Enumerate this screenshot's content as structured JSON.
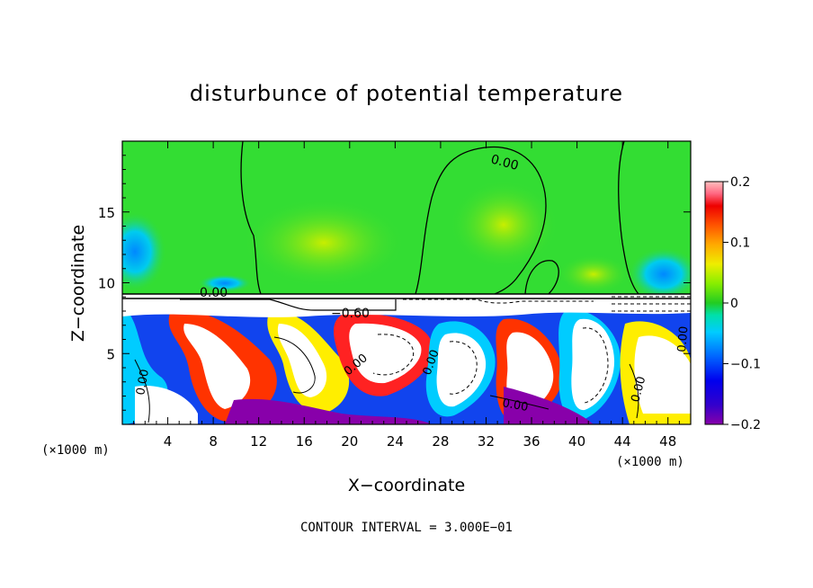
{
  "chart_data": {
    "type": "heatmap",
    "title": "disturbunce of potential temperature",
    "xlabel": "X−coordinate",
    "ylabel": "Z−coordinate",
    "x_unit": "(×1000 m)",
    "z_unit": "(×1000 m)",
    "xlim": [
      0,
      50
    ],
    "ylim": [
      0,
      20
    ],
    "x_ticks": [
      4,
      8,
      12,
      16,
      20,
      24,
      28,
      32,
      36,
      40,
      44,
      48
    ],
    "y_ticks": [
      5,
      10,
      15
    ],
    "colorbar": {
      "vmin": -0.2,
      "vmax": 0.2,
      "ticks": [
        -0.2,
        -0.1,
        0,
        0.1,
        0.2
      ],
      "tick_labels": [
        "−0.2",
        "−0.1",
        "0",
        "0.1",
        "0.2"
      ]
    },
    "contour_labels": [
      "0.00",
      "0.00",
      "−0.60",
      "0.00",
      "0.00",
      "0.00",
      "0.00",
      "0.00",
      "0.00"
    ],
    "footer": "CONTOUR INTERVAL = 3.000E−01",
    "colors": {
      "upper_field": "#33dd33",
      "zero": "#22cc22",
      "positive_max": "#ffb0b0",
      "negative_max": "#8800aa"
    }
  }
}
